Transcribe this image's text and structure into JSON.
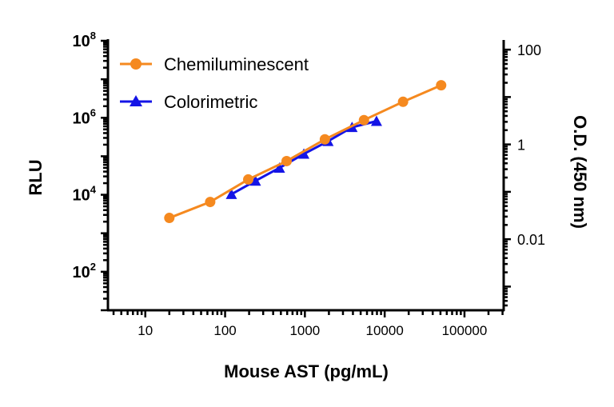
{
  "chart_data": {
    "type": "scatter",
    "title": "",
    "xlabel": "Mouse AST (pg/mL)",
    "ylabel": "RLU",
    "y2label": "O.D. (450 nm)",
    "xscale": "log",
    "yscale": "log",
    "xlim": [
      3.4,
      310000
    ],
    "ylim": [
      10,
      100000000
    ],
    "y2lim": [
      0.0004,
      160
    ],
    "x_ticks": [
      {
        "v": 10,
        "label": "10"
      },
      {
        "v": 100,
        "label": "100"
      },
      {
        "v": 1000,
        "label": "1000"
      },
      {
        "v": 10000,
        "label": "10000"
      },
      {
        "v": 100000,
        "label": "100000"
      }
    ],
    "y_ticks": [
      {
        "v": 100,
        "base": "10",
        "exp": "2"
      },
      {
        "v": 10000,
        "base": "10",
        "exp": "4"
      },
      {
        "v": 1000000,
        "base": "10",
        "exp": "6"
      },
      {
        "v": 100000000,
        "base": "10",
        "exp": "8"
      }
    ],
    "y2_ticks": [
      {
        "v": 0.01,
        "label": "0.01"
      },
      {
        "v": 1,
        "label": "1"
      },
      {
        "v": 100,
        "label": "100"
      }
    ],
    "legend_position": "top-left",
    "series": [
      {
        "name": "Chemiluminescent",
        "axis": "left",
        "marker": "circle",
        "color": "#F5891F",
        "x": [
          20,
          65,
          195,
          590,
          1780,
          5500,
          17000,
          51000
        ],
        "y": [
          2500,
          6500,
          25000,
          75000,
          275000,
          870000,
          2600000,
          7000000
        ]
      },
      {
        "name": "Colorimetric",
        "axis": "right",
        "marker": "triangle",
        "color": "#1414E6",
        "x": [
          120,
          240,
          480,
          970,
          1950,
          3900,
          7900
        ],
        "y": [
          0.089,
          0.17,
          0.32,
          0.63,
          1.17,
          2.3,
          3.1
        ]
      }
    ]
  }
}
